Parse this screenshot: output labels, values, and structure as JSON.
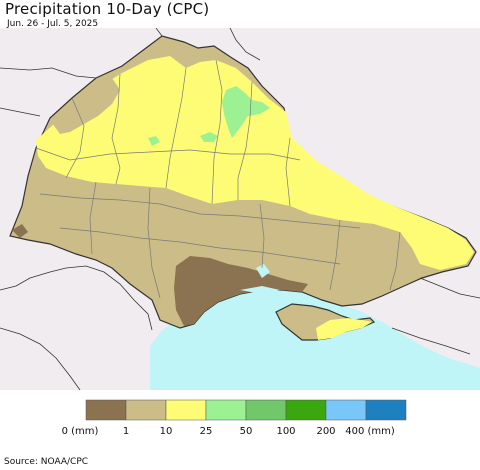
{
  "header": {
    "title": "Precipitation 10-Day (CPC)",
    "subtitle": "Jun. 26 - Jul. 5, 2025"
  },
  "map": {
    "colors": {
      "land_outside": "#f1ecf0",
      "sea": "#bff5f7",
      "border": "#333333",
      "internal_border": "#7a7a7a"
    }
  },
  "legend": {
    "bins": [
      {
        "color": "#8b7250",
        "label": "0 (mm)"
      },
      {
        "color": "#cbbc88",
        "label": "1"
      },
      {
        "color": "#fdfc74",
        "label": "10"
      },
      {
        "color": "#9cf293",
        "label": "25"
      },
      {
        "color": "#70c86a",
        "label": "50"
      },
      {
        "color": "#3aa70e",
        "label": "100"
      },
      {
        "color": "#79c6f8",
        "label": "200"
      },
      {
        "color": "#1f80c0",
        "label": "400 (mm)"
      }
    ]
  },
  "footer": {
    "source": "Source: NOAA/CPC"
  }
}
